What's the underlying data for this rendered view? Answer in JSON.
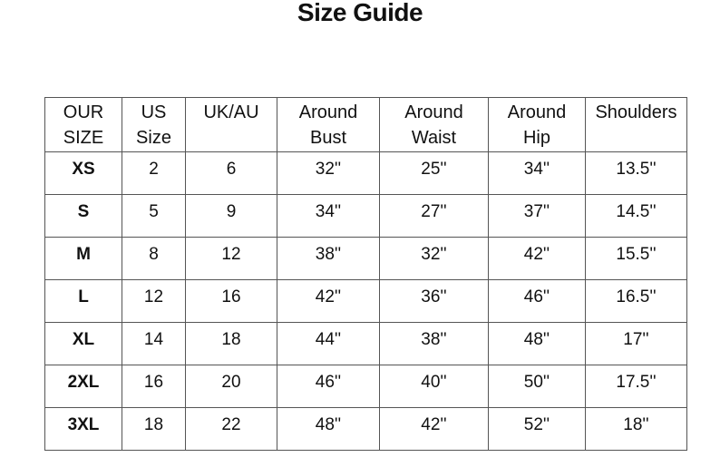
{
  "title": "Size Guide",
  "headers": [
    [
      "OUR",
      "SIZE"
    ],
    [
      "US",
      "Size"
    ],
    [
      "UK/AU",
      ""
    ],
    [
      "Around",
      "Bust"
    ],
    [
      "Around",
      "Waist"
    ],
    [
      "Around",
      "Hip"
    ],
    [
      "Shoulders",
      ""
    ]
  ],
  "rows": [
    [
      "XS",
      "2",
      "6",
      "32''",
      "25''",
      "34''",
      "13.5''"
    ],
    [
      "S",
      "5",
      "9",
      "34''",
      "27''",
      "37''",
      "14.5''"
    ],
    [
      "M",
      "8",
      "12",
      "38''",
      "32''",
      "42''",
      "15.5''"
    ],
    [
      "L",
      "12",
      "16",
      "42''",
      "36''",
      "46''",
      "16.5''"
    ],
    [
      "XL",
      "14",
      "18",
      "44''",
      "38''",
      "48''",
      "17''"
    ],
    [
      "2XL",
      "16",
      "20",
      "46''",
      "40''",
      "50''",
      "17.5''"
    ],
    [
      "3XL",
      "18",
      "22",
      "48''",
      "42''",
      "52''",
      "18''"
    ]
  ]
}
